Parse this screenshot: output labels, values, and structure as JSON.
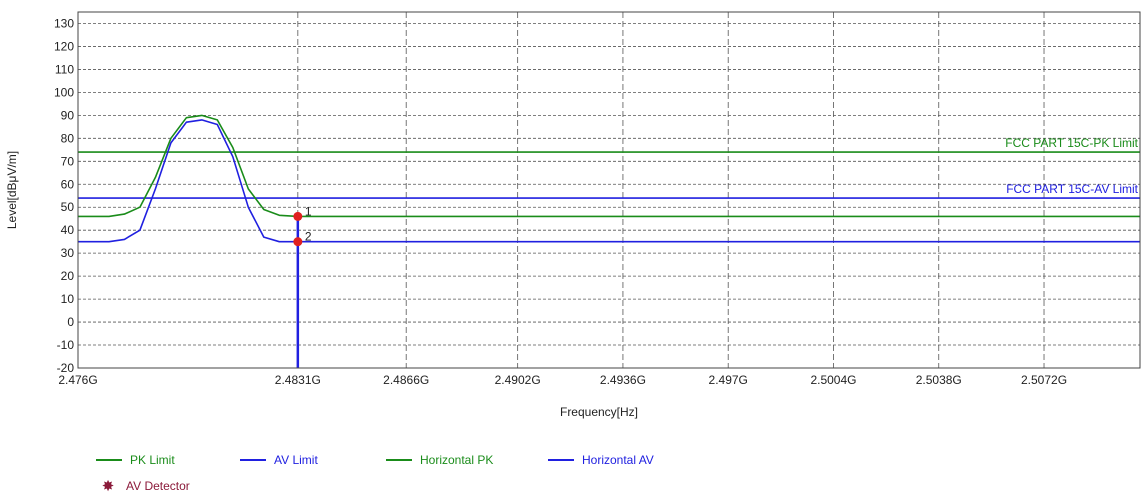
{
  "chart_data": {
    "type": "line",
    "xlabel": "Frequency[Hz]",
    "ylabel": "Level[dBμV/m]",
    "xlim": [
      2.476,
      2.5103
    ],
    "ylim": [
      -20,
      135
    ],
    "y_ticks": [
      -20,
      -10,
      0,
      10,
      20,
      30,
      40,
      50,
      60,
      70,
      80,
      90,
      100,
      110,
      120,
      130
    ],
    "x_ticks": [
      {
        "value": 2.476,
        "label": "2.476G"
      },
      {
        "value": 2.4831,
        "label": "2.4831G"
      },
      {
        "value": 2.4866,
        "label": "2.4866G"
      },
      {
        "value": 2.4902,
        "label": "2.4902G"
      },
      {
        "value": 2.4936,
        "label": "2.4936G"
      },
      {
        "value": 2.497,
        "label": "2.497G"
      },
      {
        "value": 2.5004,
        "label": "2.5004G"
      },
      {
        "value": 2.5038,
        "label": "2.5038G"
      },
      {
        "value": 2.5072,
        "label": "2.5072G"
      }
    ],
    "grid": true,
    "limit_lines": [
      {
        "name": "PK Limit",
        "label": "FCC PART 15C-PK Limit",
        "value": 74,
        "color": "#1a8c1a"
      },
      {
        "name": "AV Limit",
        "label": "FCC PART 15C-AV Limit",
        "value": 54,
        "color": "#2020e0"
      }
    ],
    "series": [
      {
        "name": "Horizontal PK",
        "color": "#1a8c1a",
        "x": [
          2.476,
          2.477,
          2.4775,
          2.478,
          2.4785,
          2.479,
          2.4795,
          2.48,
          2.4805,
          2.481,
          2.4815,
          2.482,
          2.4825,
          2.4831,
          2.485,
          2.49,
          2.495,
          2.5,
          2.505,
          2.5103
        ],
        "y": [
          46,
          46,
          47,
          50,
          63,
          80,
          89,
          90,
          88,
          76,
          58,
          49,
          46.5,
          46,
          46,
          46,
          46,
          46,
          46,
          46
        ]
      },
      {
        "name": "Horizontal AV",
        "color": "#2020e0",
        "x": [
          2.476,
          2.477,
          2.4775,
          2.478,
          2.4785,
          2.479,
          2.4795,
          2.48,
          2.4805,
          2.481,
          2.4815,
          2.482,
          2.4825,
          2.4831,
          2.485,
          2.49,
          2.495,
          2.5,
          2.505,
          2.5103
        ],
        "y": [
          35,
          35,
          36,
          40,
          58,
          78,
          87,
          88,
          86,
          72,
          50,
          37,
          35,
          35,
          35,
          35,
          35,
          35,
          35,
          35
        ]
      }
    ],
    "markers": [
      {
        "label": "1",
        "x": 2.4831,
        "y": 46
      },
      {
        "label": "2",
        "x": 2.4831,
        "y": 35
      }
    ],
    "detector_line": {
      "x": 2.4831,
      "from": -20,
      "to": 46,
      "color": "#2020e0"
    },
    "legend": {
      "position": "bottom-left",
      "items": [
        {
          "label": "PK Limit",
          "color": "#1a8c1a",
          "kind": "line"
        },
        {
          "label": "AV Limit",
          "color": "#2020e0",
          "kind": "line"
        },
        {
          "label": "Horizontal PK",
          "color": "#1a8c1a",
          "kind": "line"
        },
        {
          "label": "Horizontal AV",
          "color": "#2020e0",
          "kind": "line"
        },
        {
          "label": "AV Detector",
          "color": "#8b1a3a",
          "kind": "star"
        }
      ]
    }
  }
}
